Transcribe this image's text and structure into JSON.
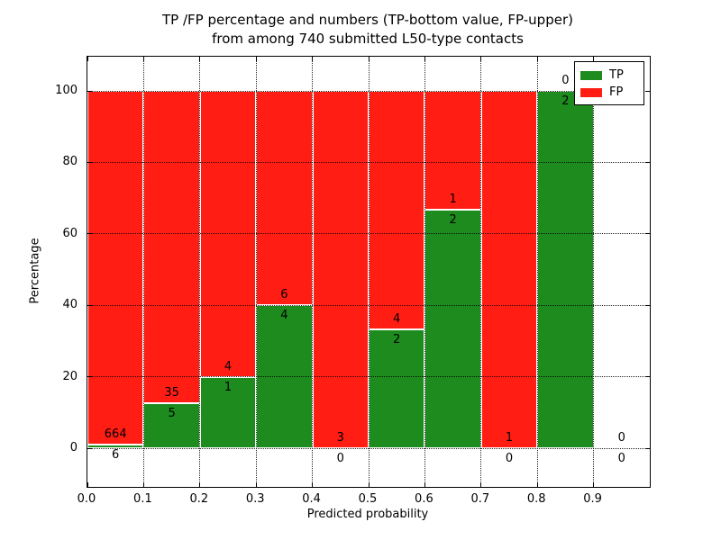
{
  "figure": {
    "title_line1": "TP /FP percentage and numbers (TP-bottom value, FP-upper)",
    "title_line2": "from among 740 submitted L50-type contacts"
  },
  "chart_data": {
    "type": "bar",
    "stacked": true,
    "title": "TP /FP percentage and numbers (TP-bottom value, FP-upper) from among 740 submitted L50-type contacts",
    "xlabel": "Predicted probability",
    "ylabel": "Percentage",
    "xlim": [
      0.0,
      1.0
    ],
    "ylim_display": [
      -11,
      110
    ],
    "grid": "dotted",
    "legend_position": "upper right",
    "total_contacts_in_title": 740,
    "bin_edges": [
      0.0,
      0.1,
      0.2,
      0.3,
      0.4,
      0.5,
      0.6,
      0.7,
      0.8,
      0.9,
      1.0
    ],
    "x_tick_labels": [
      "0.0",
      "0.1",
      "0.2",
      "0.3",
      "0.4",
      "0.5",
      "0.6",
      "0.7",
      "0.8",
      "0.9"
    ],
    "y_tick_labels": [
      "0",
      "20",
      "40",
      "60",
      "80",
      "100"
    ],
    "y_tick_values": [
      0,
      20,
      40,
      60,
      80,
      100
    ],
    "series": [
      {
        "name": "TP",
        "color": "#1e8b1e",
        "counts": [
          6,
          5,
          1,
          4,
          0,
          2,
          2,
          0,
          2,
          0
        ]
      },
      {
        "name": "FP",
        "color": "#ff1d14",
        "counts": [
          664,
          35,
          4,
          6,
          3,
          4,
          1,
          1,
          0,
          0
        ]
      }
    ],
    "tp_percent_of_bin": [
      0.9,
      12.5,
      20.0,
      40.0,
      0.0,
      33.3,
      66.7,
      0.0,
      100.0,
      null
    ]
  }
}
